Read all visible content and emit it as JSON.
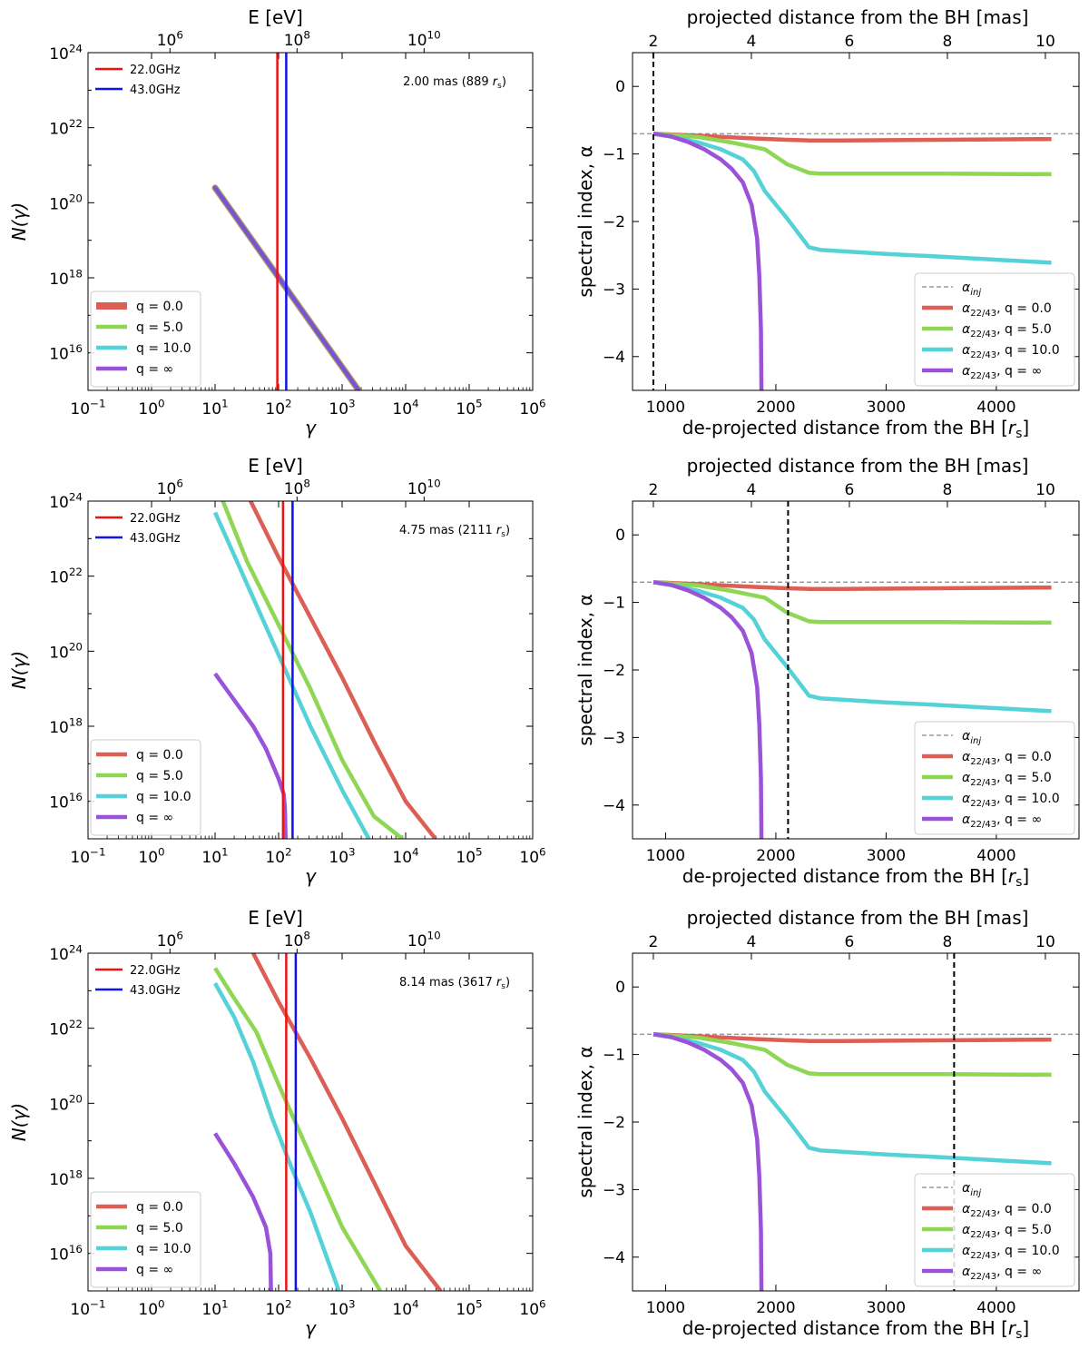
{
  "figure": {
    "colors": {
      "q0": "#dc5e55",
      "q5": "#8ed653",
      "q10": "#55d2d7",
      "qinf": "#9a52d8",
      "ghz22": "#ee1111",
      "ghz43": "#1111ee",
      "dashed": "#888888",
      "vline": "#000000",
      "single_curve": "#7a52d8",
      "single_curve_edge": "#a9a157"
    },
    "left_axes": {
      "xlabel": "γ",
      "ylabel": "N(γ)",
      "top_xlabel": "E [eV]",
      "xlim": [
        -1,
        6
      ],
      "ylim": [
        15,
        24
      ],
      "xtick_exponents": [
        "−1",
        "0",
        "1",
        "2",
        "3",
        "4",
        "5",
        "6"
      ],
      "ytick_exponents": [
        "16",
        "18",
        "20",
        "22",
        "24"
      ],
      "top_tick_exponents": [
        "6",
        "8",
        "10"
      ],
      "top_tick_positions_log_gamma": [
        0.29,
        2.29,
        4.29
      ],
      "legend_freq": [
        "22.0GHz",
        "43.0GHz"
      ],
      "legend_q": [
        "q = 0.0",
        "q = 5.0",
        "q = 10.0",
        "q = ∞"
      ]
    },
    "right_axes": {
      "xlabel": "de-projected distance from the BH [",
      "xlabel_tail": "]",
      "ylabel": "spectral index, α",
      "top_xlabel": "projected distance from the BH [mas]",
      "xlim": [
        700,
        4750
      ],
      "ylim": [
        -4.5,
        0.5
      ],
      "xticks": [
        "1000",
        "2000",
        "3000",
        "4000"
      ],
      "yticks": [
        "0",
        "−1",
        "−2",
        "−3",
        "−4"
      ],
      "top_ticks": [
        "2",
        "4",
        "6",
        "8",
        "10"
      ],
      "legend": [
        "α_inj",
        "α_22/43, q = 0.0",
        "α_22/43, q = 5.0",
        "α_22/43, q = 10.0",
        "α_22/43, q = ∞"
      ]
    }
  },
  "chart_data": [
    {
      "type": "line",
      "panel": "spectrum",
      "annotation": "2.00 mas (889 r_s)",
      "annotation_main": "2.00 mas (889 ",
      "freq_lines_log_gamma": {
        "22.0GHz": 1.98,
        "43.0GHz": 2.12
      },
      "xscale": "log",
      "yscale": "log",
      "series": [
        {
          "name": "q = 0.0",
          "points": [
            [
              1.0,
              20.4
            ],
            [
              3.26,
              15.0
            ]
          ]
        },
        {
          "name": "q = 5.0",
          "points": [
            [
              1.0,
              20.4
            ],
            [
              3.26,
              15.0
            ]
          ]
        },
        {
          "name": "q = 10.0",
          "points": [
            [
              1.0,
              20.4
            ],
            [
              3.26,
              15.0
            ]
          ]
        },
        {
          "name": "q = ∞",
          "points": [
            [
              1.0,
              20.4
            ],
            [
              3.26,
              15.0
            ]
          ]
        }
      ]
    },
    {
      "type": "line",
      "panel": "spectral_index",
      "marker_distance_rs": 889,
      "alpha_inj": -0.7,
      "series": [
        {
          "name": "q = 0.0",
          "points": [
            [
              889,
              -0.7
            ],
            [
              1300,
              -0.73
            ],
            [
              1800,
              -0.77
            ],
            [
              2100,
              -0.79
            ],
            [
              2300,
              -0.8
            ],
            [
              2600,
              -0.8
            ],
            [
              3500,
              -0.79
            ],
            [
              4500,
              -0.78
            ]
          ]
        },
        {
          "name": "q = 5.0",
          "points": [
            [
              889,
              -0.7
            ],
            [
              1300,
              -0.75
            ],
            [
              1600,
              -0.83
            ],
            [
              1900,
              -0.93
            ],
            [
              2100,
              -1.15
            ],
            [
              2300,
              -1.28
            ],
            [
              2400,
              -1.29
            ],
            [
              3500,
              -1.29
            ],
            [
              4500,
              -1.3
            ]
          ]
        },
        {
          "name": "q = 10.0",
          "points": [
            [
              889,
              -0.7
            ],
            [
              1100,
              -0.76
            ],
            [
              1300,
              -0.83
            ],
            [
              1500,
              -0.93
            ],
            [
              1700,
              -1.08
            ],
            [
              1800,
              -1.25
            ],
            [
              1900,
              -1.55
            ],
            [
              2100,
              -1.95
            ],
            [
              2300,
              -2.38
            ],
            [
              2400,
              -2.42
            ],
            [
              3000,
              -2.48
            ],
            [
              3500,
              -2.52
            ],
            [
              4500,
              -2.61
            ]
          ]
        },
        {
          "name": "q = ∞",
          "points": [
            [
              889,
              -0.7
            ],
            [
              1050,
              -0.74
            ],
            [
              1200,
              -0.82
            ],
            [
              1350,
              -0.93
            ],
            [
              1500,
              -1.08
            ],
            [
              1600,
              -1.22
            ],
            [
              1700,
              -1.42
            ],
            [
              1780,
              -1.75
            ],
            [
              1830,
              -2.25
            ],
            [
              1850,
              -2.8
            ],
            [
              1865,
              -3.6
            ],
            [
              1870,
              -4.6
            ]
          ]
        }
      ]
    },
    {
      "type": "line",
      "panel": "spectrum",
      "annotation": "4.75 mas (2111 r_s)",
      "annotation_main": "4.75 mas (2111 ",
      "freq_lines_log_gamma": {
        "22.0GHz": 2.07,
        "43.0GHz": 2.22
      },
      "xscale": "log",
      "yscale": "log",
      "series": [
        {
          "name": "q = 0.0",
          "points": [
            [
              1.5,
              24.2
            ],
            [
              2.0,
              22.5
            ],
            [
              2.5,
              20.9
            ],
            [
              3.0,
              19.3
            ],
            [
              3.5,
              17.6
            ],
            [
              4.0,
              16.0
            ],
            [
              4.47,
              15.0
            ]
          ]
        },
        {
          "name": "q = 5.0",
          "points": [
            [
              1.1,
              24.1
            ],
            [
              1.5,
              22.4
            ],
            [
              2.0,
              20.7
            ],
            [
              2.5,
              19.0
            ],
            [
              3.0,
              17.1
            ],
            [
              3.5,
              15.6
            ],
            [
              3.95,
              15.0
            ]
          ]
        },
        {
          "name": "q = 10.0",
          "points": [
            [
              1.0,
              23.7
            ],
            [
              1.5,
              21.8
            ],
            [
              2.0,
              19.9
            ],
            [
              2.5,
              18.0
            ],
            [
              3.0,
              16.3
            ],
            [
              3.42,
              15.0
            ]
          ]
        },
        {
          "name": "q = ∞",
          "points": [
            [
              1.0,
              19.4
            ],
            [
              1.3,
              18.7
            ],
            [
              1.6,
              18.0
            ],
            [
              1.8,
              17.4
            ],
            [
              2.0,
              16.6
            ],
            [
              2.08,
              16.2
            ],
            [
              2.1,
              15.8
            ],
            [
              2.11,
              15.0
            ]
          ]
        }
      ]
    },
    {
      "type": "line",
      "panel": "spectral_index",
      "marker_distance_rs": 2111,
      "alpha_inj": -0.7,
      "series": [
        {
          "name": "q = 0.0",
          "points": [
            [
              889,
              -0.7
            ],
            [
              1300,
              -0.73
            ],
            [
              1800,
              -0.77
            ],
            [
              2100,
              -0.79
            ],
            [
              2300,
              -0.8
            ],
            [
              2600,
              -0.8
            ],
            [
              3500,
              -0.79
            ],
            [
              4500,
              -0.78
            ]
          ]
        },
        {
          "name": "q = 5.0",
          "points": [
            [
              889,
              -0.7
            ],
            [
              1300,
              -0.75
            ],
            [
              1600,
              -0.83
            ],
            [
              1900,
              -0.93
            ],
            [
              2100,
              -1.15
            ],
            [
              2300,
              -1.28
            ],
            [
              2400,
              -1.29
            ],
            [
              3500,
              -1.29
            ],
            [
              4500,
              -1.3
            ]
          ]
        },
        {
          "name": "q = 10.0",
          "points": [
            [
              889,
              -0.7
            ],
            [
              1100,
              -0.76
            ],
            [
              1300,
              -0.83
            ],
            [
              1500,
              -0.93
            ],
            [
              1700,
              -1.08
            ],
            [
              1800,
              -1.25
            ],
            [
              1900,
              -1.55
            ],
            [
              2100,
              -1.95
            ],
            [
              2300,
              -2.38
            ],
            [
              2400,
              -2.42
            ],
            [
              3000,
              -2.48
            ],
            [
              3500,
              -2.52
            ],
            [
              4500,
              -2.61
            ]
          ]
        },
        {
          "name": "q = ∞",
          "points": [
            [
              889,
              -0.7
            ],
            [
              1050,
              -0.74
            ],
            [
              1200,
              -0.82
            ],
            [
              1350,
              -0.93
            ],
            [
              1500,
              -1.08
            ],
            [
              1600,
              -1.22
            ],
            [
              1700,
              -1.42
            ],
            [
              1780,
              -1.75
            ],
            [
              1830,
              -2.25
            ],
            [
              1850,
              -2.8
            ],
            [
              1865,
              -3.6
            ],
            [
              1870,
              -4.6
            ]
          ]
        }
      ]
    },
    {
      "type": "line",
      "panel": "spectrum",
      "annotation": "8.14 mas (3617 r_s)",
      "annotation_main": "8.14 mas (3617 ",
      "freq_lines_log_gamma": {
        "22.0GHz": 2.12,
        "43.0GHz": 2.27
      },
      "xscale": "log",
      "yscale": "log",
      "series": [
        {
          "name": "q = 0.0",
          "points": [
            [
              1.6,
              24.0
            ],
            [
              2.0,
              22.7
            ],
            [
              2.5,
              21.2
            ],
            [
              3.0,
              19.6
            ],
            [
              3.5,
              17.9
            ],
            [
              4.0,
              16.2
            ],
            [
              4.55,
              15.0
            ]
          ]
        },
        {
          "name": "q = 5.0",
          "points": [
            [
              1.0,
              23.6
            ],
            [
              1.3,
              22.8
            ],
            [
              1.65,
              21.9
            ],
            [
              2.0,
              20.5
            ],
            [
              2.5,
              18.6
            ],
            [
              3.0,
              16.7
            ],
            [
              3.6,
              15.0
            ]
          ]
        },
        {
          "name": "q = 10.0",
          "points": [
            [
              1.0,
              23.2
            ],
            [
              1.3,
              22.3
            ],
            [
              1.6,
              21.1
            ],
            [
              1.7,
              20.6
            ],
            [
              1.9,
              19.6
            ],
            [
              2.2,
              18.3
            ],
            [
              2.5,
              17.1
            ],
            [
              2.95,
              15.0
            ]
          ]
        },
        {
          "name": "q = ∞",
          "points": [
            [
              1.0,
              19.2
            ],
            [
              1.3,
              18.4
            ],
            [
              1.6,
              17.5
            ],
            [
              1.8,
              16.7
            ],
            [
              1.87,
              16.0
            ],
            [
              1.88,
              15.0
            ]
          ]
        }
      ]
    },
    {
      "type": "line",
      "panel": "spectral_index",
      "marker_distance_rs": 3617,
      "alpha_inj": -0.7,
      "series": [
        {
          "name": "q = 0.0",
          "points": [
            [
              889,
              -0.7
            ],
            [
              1300,
              -0.73
            ],
            [
              1800,
              -0.77
            ],
            [
              2100,
              -0.79
            ],
            [
              2300,
              -0.8
            ],
            [
              2600,
              -0.8
            ],
            [
              3500,
              -0.79
            ],
            [
              4500,
              -0.78
            ]
          ]
        },
        {
          "name": "q = 5.0",
          "points": [
            [
              889,
              -0.7
            ],
            [
              1300,
              -0.75
            ],
            [
              1600,
              -0.83
            ],
            [
              1900,
              -0.93
            ],
            [
              2100,
              -1.15
            ],
            [
              2300,
              -1.28
            ],
            [
              2400,
              -1.29
            ],
            [
              3500,
              -1.29
            ],
            [
              4500,
              -1.3
            ]
          ]
        },
        {
          "name": "q = 10.0",
          "points": [
            [
              889,
              -0.7
            ],
            [
              1100,
              -0.76
            ],
            [
              1300,
              -0.83
            ],
            [
              1500,
              -0.93
            ],
            [
              1700,
              -1.08
            ],
            [
              1800,
              -1.25
            ],
            [
              1900,
              -1.55
            ],
            [
              2100,
              -1.95
            ],
            [
              2300,
              -2.38
            ],
            [
              2400,
              -2.42
            ],
            [
              3000,
              -2.48
            ],
            [
              3500,
              -2.52
            ],
            [
              4500,
              -2.61
            ]
          ]
        },
        {
          "name": "q = ∞",
          "points": [
            [
              889,
              -0.7
            ],
            [
              1050,
              -0.74
            ],
            [
              1200,
              -0.82
            ],
            [
              1350,
              -0.93
            ],
            [
              1500,
              -1.08
            ],
            [
              1600,
              -1.22
            ],
            [
              1700,
              -1.42
            ],
            [
              1780,
              -1.75
            ],
            [
              1830,
              -2.25
            ],
            [
              1850,
              -2.8
            ],
            [
              1865,
              -3.6
            ],
            [
              1870,
              -4.6
            ]
          ]
        }
      ]
    }
  ]
}
